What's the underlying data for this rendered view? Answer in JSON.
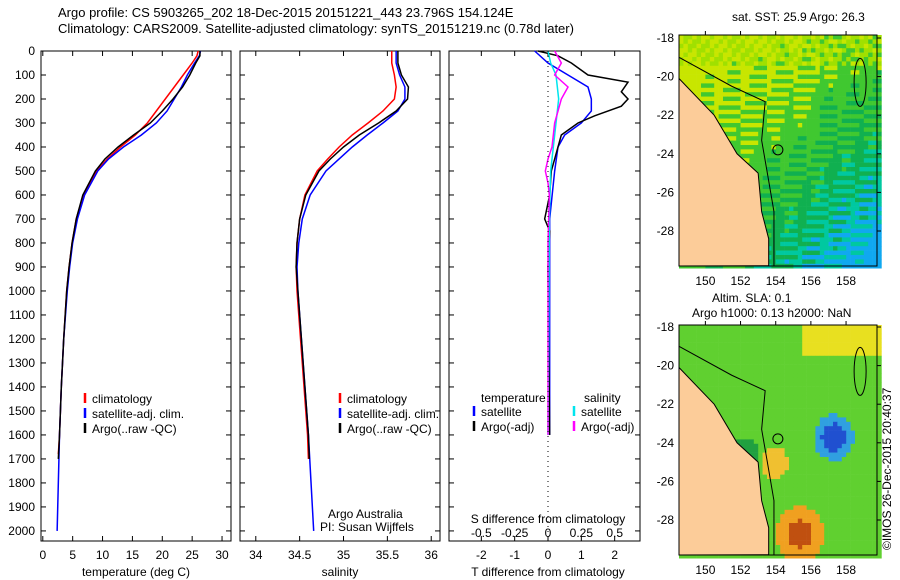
{
  "title": {
    "line1": "Argo profile: CS 5903265_202 18-Dec-2015 20151221_443 23.796S 154.124E",
    "line2": "Climatology: CARS2009. Satellite-adjusted climatology: synTS_20151219.nc (0.78d later)"
  },
  "colors": {
    "climatology": "#ff0000",
    "satellite": "#0000ff",
    "argo": "#000000",
    "sal_satellite": "#00e5ee",
    "sal_argo": "#ff00ff",
    "land": "#fccc99"
  },
  "chart_data": [
    {
      "type": "line",
      "name": "temperature",
      "xlabel": "temperature (deg C)",
      "ylabel": "",
      "xlim": [
        -0.3,
        31.5
      ],
      "ylim": [
        2042,
        0
      ],
      "xticks": [
        0,
        5,
        10,
        15,
        20,
        25,
        30
      ],
      "yticks": [
        0,
        100,
        200,
        300,
        400,
        500,
        600,
        700,
        800,
        900,
        1000,
        1100,
        1200,
        1300,
        1400,
        1500,
        1600,
        1700,
        1800,
        1900,
        2000
      ],
      "legend": [
        "climatology",
        "satellite-adj. clim.",
        "Argo(..raw -QC)"
      ],
      "series": [
        {
          "name": "climatology",
          "depth": [
            0,
            20,
            50,
            100,
            150,
            200,
            250,
            300,
            350,
            400,
            450,
            500,
            600,
            700,
            800,
            900,
            1000,
            1200,
            1400,
            1600,
            1680
          ],
          "values": [
            26,
            25.8,
            25,
            23.5,
            22,
            20.5,
            19,
            17.5,
            15.5,
            13,
            10.8,
            9,
            6.8,
            5.6,
            4.9,
            4.4,
            4,
            3.5,
            3.1,
            2.8,
            2.6
          ]
        },
        {
          "name": "satellite-adj. clim.",
          "depth": [
            0,
            20,
            50,
            100,
            150,
            200,
            250,
            300,
            350,
            400,
            450,
            500,
            600,
            700,
            800,
            900,
            1000,
            1200,
            1400,
            1600,
            1800,
            2000
          ],
          "values": [
            26.4,
            26.2,
            25.4,
            24.2,
            23.2,
            22,
            20.8,
            19,
            16.5,
            13.5,
            11,
            9.2,
            7,
            5.8,
            5,
            4.5,
            4.1,
            3.5,
            3.1,
            2.8,
            2.6,
            2.4
          ]
        },
        {
          "name": "Argo(..raw -QC)",
          "depth": [
            0,
            20,
            50,
            100,
            150,
            200,
            250,
            300,
            350,
            400,
            450,
            500,
            600,
            700,
            800,
            900,
            1000,
            1200,
            1400,
            1600,
            1700
          ],
          "values": [
            26.3,
            26.3,
            25.6,
            24.6,
            23.4,
            21.8,
            20,
            18,
            15.2,
            12.6,
            10.4,
            8.8,
            6.7,
            5.6,
            4.9,
            4.4,
            4,
            3.5,
            3.1,
            2.8,
            2.6
          ]
        }
      ]
    },
    {
      "type": "line",
      "name": "salinity",
      "xlabel": "salinity",
      "xlim": [
        33.82,
        36.1
      ],
      "ylim": [
        2042,
        0
      ],
      "xticks": [
        34,
        34.5,
        35,
        35.5,
        36
      ],
      "legend": [
        "climatology",
        "satellite-adj. clim.",
        "Argo(..raw -QC)"
      ],
      "annotation": [
        "Argo Australia",
        "PI: Susan Wijffels"
      ],
      "series": [
        {
          "name": "climatology",
          "depth": [
            0,
            50,
            100,
            150,
            200,
            250,
            300,
            350,
            400,
            450,
            500,
            600,
            700,
            800,
            900,
            1000,
            1200,
            1400,
            1600,
            1700
          ],
          "values": [
            35.55,
            35.55,
            35.58,
            35.6,
            35.58,
            35.45,
            35.28,
            35.1,
            34.95,
            34.82,
            34.7,
            34.56,
            34.5,
            34.47,
            34.46,
            34.47,
            34.51,
            34.55,
            34.59,
            34.6
          ]
        },
        {
          "name": "satellite-adj. clim.",
          "depth": [
            0,
            50,
            100,
            150,
            200,
            250,
            300,
            350,
            400,
            450,
            500,
            600,
            700,
            800,
            900,
            1000,
            1200,
            1400,
            1600,
            1800,
            2000
          ],
          "values": [
            35.6,
            35.6,
            35.64,
            35.7,
            35.7,
            35.62,
            35.45,
            35.27,
            35.1,
            34.95,
            34.8,
            34.62,
            34.53,
            34.49,
            34.47,
            34.48,
            34.52,
            34.56,
            34.6,
            34.63,
            34.66
          ]
        },
        {
          "name": "Argo(..raw -QC)",
          "depth": [
            0,
            50,
            100,
            150,
            200,
            250,
            300,
            350,
            400,
            450,
            500,
            600,
            700,
            800,
            900,
            1000,
            1200,
            1400,
            1600,
            1700
          ],
          "values": [
            35.62,
            35.62,
            35.66,
            35.74,
            35.73,
            35.6,
            35.4,
            35.18,
            35.0,
            34.85,
            34.72,
            34.57,
            34.5,
            34.47,
            34.46,
            34.48,
            34.52,
            34.56,
            34.6,
            34.61
          ]
        }
      ]
    },
    {
      "type": "line",
      "name": "difference",
      "xlabel": "T difference from climatology",
      "x2label": "S difference from climatology",
      "xlim": [
        -2.97,
        2.76
      ],
      "ylim": [
        2042,
        0
      ],
      "xticks": [
        -2,
        -1,
        0,
        1,
        2
      ],
      "x2ticks": [
        -0.5,
        -0.25,
        0,
        0.25,
        0.5
      ],
      "legend_t": {
        "title": "temperature",
        "items": [
          "satellite",
          "Argo(-adj)"
        ]
      },
      "legend_s": {
        "title": "salinity",
        "items": [
          "satellite",
          "Argo(-adj)"
        ]
      },
      "series": [
        {
          "name": "T satellite",
          "depth": [
            0,
            50,
            100,
            150,
            200,
            250,
            300,
            350,
            400,
            500,
            700,
            1000,
            1600
          ],
          "values": [
            -0.4,
            0,
            0.6,
            1.2,
            1.3,
            1.3,
            1.0,
            0.5,
            0.3,
            0.2,
            0.05,
            0.05,
            0.05
          ]
        },
        {
          "name": "T Argo(-adj)",
          "depth": [
            0,
            20,
            50,
            100,
            130,
            170,
            200,
            230,
            270,
            300,
            350,
            400,
            450,
            500,
            600,
            700,
            750,
            900,
            1600
          ],
          "values": [
            -0.3,
            0.3,
            0.7,
            1.2,
            2.4,
            2.2,
            2.4,
            2.2,
            1.4,
            0.9,
            0.4,
            0.3,
            0.2,
            0.1,
            0.05,
            -0.1,
            0.05,
            0,
            0.05
          ]
        },
        {
          "name": "S satellite",
          "depth": [
            0,
            50,
            100,
            200,
            300,
            400,
            500,
            700,
            1600
          ],
          "values": [
            0,
            0.02,
            0.06,
            0.08,
            0.06,
            0.04,
            0.02,
            0.01,
            0
          ]
        },
        {
          "name": "S Argo(-adj)",
          "depth": [
            0,
            50,
            100,
            150,
            200,
            300,
            400,
            450,
            500,
            550,
            600,
            800,
            1600
          ],
          "values": [
            0.05,
            0.1,
            0.05,
            0.15,
            0.1,
            0.05,
            0.03,
            0,
            -0.02,
            0,
            0.01,
            0,
            0
          ]
        }
      ]
    },
    {
      "type": "heatmap",
      "name": "sst-map",
      "title": "sat. SST: 25.9 Argo: 26.3",
      "xticks": [
        150,
        152,
        154,
        156,
        158
      ],
      "yticks": [
        -18,
        -20,
        -22,
        -24,
        -26,
        -28
      ],
      "xlim": [
        148.5,
        159.76
      ],
      "ylim": [
        -29.8,
        -17.85
      ],
      "float_position": [
        154.124,
        -23.796
      ]
    },
    {
      "type": "heatmap",
      "name": "sla-map",
      "title1": "Altim. SLA: 0.1",
      "title2": "Argo h1000: 0.13 h2000: NaN",
      "xticks": [
        150,
        152,
        154,
        156,
        158
      ],
      "yticks": [
        -18,
        -20,
        -22,
        -24,
        -26,
        -28
      ],
      "xlim": [
        148.5,
        159.76
      ],
      "ylim": [
        -29.8,
        -17.85
      ],
      "float_position": [
        154.124,
        -23.796
      ]
    }
  ],
  "credit": "©IMOS 26-Dec-2015 20:40:37"
}
